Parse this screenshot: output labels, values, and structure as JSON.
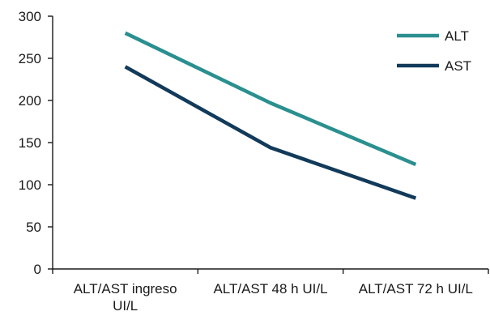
{
  "chart_data": {
    "type": "line",
    "categories": [
      [
        "ALT/AST ingreso",
        "UI/L"
      ],
      [
        "ALT/AST 48 h UI/L"
      ],
      [
        "ALT/AST 72 h UI/L"
      ]
    ],
    "series": [
      {
        "name": "ALT",
        "color": "#2a8f8f",
        "values": [
          280,
          197,
          124
        ]
      },
      {
        "name": "AST",
        "color": "#123a5a",
        "values": [
          240,
          144,
          84
        ]
      }
    ],
    "ylim": [
      0,
      300
    ],
    "yticks": [
      0,
      50,
      100,
      150,
      200,
      250,
      300
    ],
    "legend_position": "top-right",
    "grid": false
  }
}
